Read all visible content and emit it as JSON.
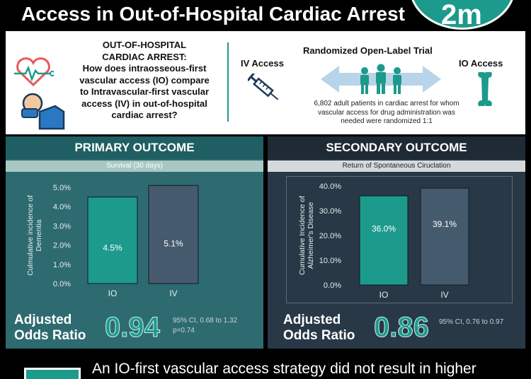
{
  "header": {
    "title": "Access in Out-of-Hospital Cardiac Arrest",
    "logo_text": "2m",
    "colors": {
      "accent": "#1c9a8c",
      "primary_panel": "#2e6b70",
      "secondary_panel": "#283846"
    }
  },
  "intro": {
    "question_lines": [
      "OUT-OF-HOSPITAL",
      "CARDIAC ARREST:",
      "How does intraosseous-first",
      "vascular access (IO) compare",
      "to Intravascular-first vascular",
      "access (IV) in out-of-hospital",
      "cardiac arrest?"
    ],
    "icons": [
      "heart-monitor-icon",
      "patient-icon",
      "syringe-icon",
      "people-icon",
      "bone-icon"
    ],
    "iv_label": "IV Access",
    "io_label": "IO Access",
    "trial_title": "Randomized Open-Label Trial",
    "trial_desc_lines": [
      "6,802 adult patients in cardiac arrest for whom",
      "vascular access for drug administration was",
      "needed were randomized 1:1"
    ]
  },
  "primary": {
    "heading": "PRIMARY OUTCOME",
    "subheading": "Survival (30 days)",
    "stat_label_lines": [
      "Adjusted",
      "Odds Ratio"
    ],
    "stat_value": "0.94",
    "stat_ci_lines": [
      "95% CI, 0.68 to 1.32",
      "p=0.74"
    ]
  },
  "secondary": {
    "heading": "SECONDARY OUTCOME",
    "subheading": "Return of Spontaneous Ciruclation",
    "stat_label_lines": [
      "Adjusted",
      "Odds Ratio"
    ],
    "stat_value": "0.86",
    "stat_ci_lines": [
      "95% CI, 0.76 to 0.97"
    ]
  },
  "conclusion": {
    "text": "An IO-first vascular access strategy did not result in higher"
  },
  "chart_data": [
    {
      "type": "bar",
      "categories": [
        "IO",
        "IV"
      ],
      "values": [
        4.5,
        5.1
      ],
      "value_labels": [
        "4.5%",
        "5.1%"
      ],
      "ylabel_lines": [
        "Culmulative incidence of",
        "Dementia"
      ],
      "ylim": [
        0,
        5
      ],
      "yticks": [
        0,
        1,
        2,
        3,
        4,
        5
      ],
      "ytick_labels": [
        "0.0%",
        "1.0%",
        "2.0%",
        "3.0%",
        "4.0%",
        "5.0%"
      ],
      "bar_colors": [
        "#1c9a8c",
        "#465a6e"
      ],
      "label_colors": [
        "#ffffff",
        "#ffffff"
      ],
      "grid": false
    },
    {
      "type": "bar",
      "categories": [
        "IO",
        "IV"
      ],
      "values": [
        36.0,
        39.1
      ],
      "value_labels": [
        "36.0%",
        "39.1%"
      ],
      "ylabel_lines": [
        "Cumulative Incidence of",
        "Alzheimer's Disease"
      ],
      "ylim": [
        0,
        40
      ],
      "yticks": [
        0,
        10,
        20,
        30,
        40
      ],
      "ytick_labels": [
        "0.0%",
        "10.0%",
        "20.0%",
        "30.0%",
        "40.0%"
      ],
      "bar_colors": [
        "#1c9a8c",
        "#465a6e"
      ],
      "label_colors": [
        "#ffffff",
        "#ffffff"
      ],
      "grid": false
    }
  ]
}
